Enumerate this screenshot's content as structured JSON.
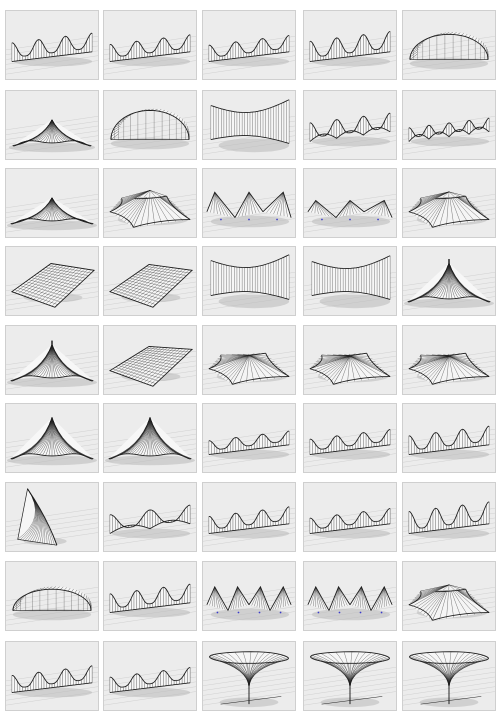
{
  "figure": {
    "columns": 5,
    "rows": 9,
    "style": {
      "panel_bg": "#ececec",
      "panel_border": "#cfcfcf",
      "line": "#1e1e1e",
      "shadow": "#b9b9b9",
      "ground_line": "#c8c8c8",
      "marker": "#3a3acc"
    },
    "thumbnails": [
      {
        "form": "ridge",
        "peaks": 3,
        "height": 0.45
      },
      {
        "form": "ridge",
        "peaks": 3,
        "height": 0.4
      },
      {
        "form": "ridge",
        "peaks": 3,
        "height": 0.38
      },
      {
        "form": "ridge",
        "peaks": 3,
        "height": 0.5
      },
      {
        "form": "vault",
        "peaks": 1,
        "height": 0.65
      },
      {
        "form": "peak-low",
        "peaks": 1,
        "height": 0.55
      },
      {
        "form": "vault-tall",
        "peaks": 1,
        "height": 0.75
      },
      {
        "form": "saddle-warped",
        "peaks": 1,
        "height": 0.7
      },
      {
        "form": "arches",
        "peaks": 3,
        "height": 0.45
      },
      {
        "form": "arches",
        "peaks": 4,
        "height": 0.3
      },
      {
        "form": "cone-wide",
        "peaks": 1,
        "height": 0.55
      },
      {
        "form": "star",
        "peaks": 1,
        "height": 0.6
      },
      {
        "form": "zigzag",
        "peaks": 3,
        "height": 0.65
      },
      {
        "form": "zigzag",
        "peaks": 3,
        "height": 0.4
      },
      {
        "form": "star",
        "peaks": 1,
        "height": 0.55
      },
      {
        "form": "hypar",
        "peaks": 1,
        "height": 0.75
      },
      {
        "form": "hypar",
        "peaks": 1,
        "height": 0.7
      },
      {
        "form": "saddle-warped",
        "peaks": 1,
        "height": 0.8
      },
      {
        "form": "saddle-warped",
        "peaks": 1,
        "height": 0.7
      },
      {
        "form": "cone-mast",
        "peaks": 1,
        "height": 0.8
      },
      {
        "form": "cone-mast",
        "peaks": 1,
        "height": 0.75
      },
      {
        "form": "flat-sail",
        "peaks": 1,
        "height": 0.55
      },
      {
        "form": "sail",
        "peaks": 1,
        "height": 0.55
      },
      {
        "form": "sail",
        "peaks": 1,
        "height": 0.5
      },
      {
        "form": "sail",
        "peaks": 1,
        "height": 0.5
      },
      {
        "form": "cone-tall",
        "peaks": 1,
        "height": 0.85
      },
      {
        "form": "cone-tall",
        "peaks": 1,
        "height": 0.85
      },
      {
        "form": "ridge",
        "peaks": 3,
        "height": 0.3
      },
      {
        "form": "ridge",
        "peaks": 3,
        "height": 0.35
      },
      {
        "form": "ridge",
        "peaks": 3,
        "height": 0.45
      },
      {
        "form": "wedge",
        "peaks": 1,
        "height": 0.9
      },
      {
        "form": "arches",
        "peaks": 2,
        "height": 0.45
      },
      {
        "form": "ridge",
        "peaks": 3,
        "height": 0.4
      },
      {
        "form": "ridge",
        "peaks": 3,
        "height": 0.35
      },
      {
        "form": "ridge",
        "peaks": 3,
        "height": 0.55
      },
      {
        "form": "vault",
        "peaks": 1,
        "height": 0.55
      },
      {
        "form": "ridge",
        "peaks": 3,
        "height": 0.45
      },
      {
        "form": "zigzag",
        "peaks": 4,
        "height": 0.6
      },
      {
        "form": "zigzag",
        "peaks": 4,
        "height": 0.6
      },
      {
        "form": "star",
        "peaks": 1,
        "height": 0.55
      },
      {
        "form": "ridge",
        "peaks": 3,
        "height": 0.4
      },
      {
        "form": "ridge",
        "peaks": 3,
        "height": 0.35
      },
      {
        "form": "funnel",
        "peaks": 1,
        "height": 0.75
      },
      {
        "form": "funnel",
        "peaks": 1,
        "height": 0.75
      },
      {
        "form": "funnel",
        "peaks": 1,
        "height": 0.75
      }
    ]
  }
}
